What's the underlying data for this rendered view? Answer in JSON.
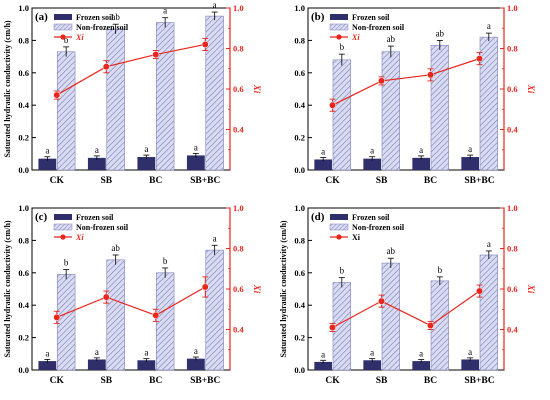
{
  "chart_data": [
    {
      "type": "bar",
      "panel_label": "(a)",
      "categories": [
        "CK",
        "SB",
        "BC",
        "SB+BC"
      ],
      "ylabel": "Saturated hydraulic conductivity (cm/h)",
      "y2label": "Xi",
      "ylim": [
        0.0,
        1.0
      ],
      "y2lim": [
        0.2,
        1.0
      ],
      "y_ticks": [
        "0.0",
        "0.2",
        "0.4",
        "0.6",
        "0.8",
        "1.0"
      ],
      "y2_ticks": [
        "0.4",
        "0.6",
        "0.8",
        "1.0"
      ],
      "legend": {
        "placement": "top-left",
        "entries": [
          "Frozen soil",
          "Non-frozen soil",
          "Xi"
        ],
        "xi_italic": true
      },
      "series": [
        {
          "name": "Frozen soil",
          "values": [
            0.07,
            0.075,
            0.08,
            0.09
          ],
          "errors": [
            0.012,
            0.012,
            0.012,
            0.012
          ],
          "letters": [
            "a",
            "a",
            "a",
            "a"
          ]
        },
        {
          "name": "Non-frozen soil",
          "values": [
            0.73,
            0.87,
            0.91,
            0.95
          ],
          "errors": [
            0.03,
            0.03,
            0.03,
            0.025
          ],
          "letters": [
            "b",
            "ab",
            "a",
            "a"
          ]
        },
        {
          "name": "Xi",
          "values": [
            0.57,
            0.71,
            0.77,
            0.82
          ],
          "errors": [
            0.02,
            0.03,
            0.02,
            0.03
          ]
        }
      ]
    },
    {
      "type": "bar",
      "panel_label": "(b)",
      "categories": [
        "CK",
        "SB",
        "BC",
        "SB+BC"
      ],
      "ylabel": "",
      "y2label": "Xi",
      "ylim": [
        0.0,
        1.0
      ],
      "y2lim": [
        0.2,
        1.0
      ],
      "y_ticks": [
        "0.0",
        "0.2",
        "0.4",
        "0.6",
        "0.8",
        "1.0"
      ],
      "y2_ticks": [
        "0.4",
        "0.6",
        "0.8",
        "1.0"
      ],
      "legend": {
        "placement": "top-left",
        "entries": [
          "Frozen soil",
          "Non-frozen soil",
          "Xi"
        ],
        "xi_italic": true
      },
      "series": [
        {
          "name": "Frozen soil",
          "values": [
            0.065,
            0.07,
            0.075,
            0.08
          ],
          "errors": [
            0.012,
            0.012,
            0.012,
            0.012
          ],
          "letters": [
            "a",
            "a",
            "a",
            "a"
          ]
        },
        {
          "name": "Non-frozen soil",
          "values": [
            0.68,
            0.73,
            0.77,
            0.82
          ],
          "errors": [
            0.035,
            0.035,
            0.03,
            0.025
          ],
          "letters": [
            "b",
            "ab",
            "ab",
            "a"
          ]
        },
        {
          "name": "Xi",
          "values": [
            0.52,
            0.64,
            0.67,
            0.75
          ],
          "errors": [
            0.03,
            0.02,
            0.03,
            0.03
          ]
        }
      ]
    },
    {
      "type": "bar",
      "panel_label": "(c)",
      "categories": [
        "CK",
        "SB",
        "BC",
        "SB+BC"
      ],
      "ylabel": "Saturated hydraulic conductivity (cm/h)",
      "y2label": "Xi",
      "ylim": [
        0.0,
        1.0
      ],
      "y2lim": [
        0.2,
        1.0
      ],
      "y_ticks": [
        "0.0",
        "0.2",
        "0.4",
        "0.6",
        "0.8",
        "1.0"
      ],
      "y2_ticks": [
        "0.4",
        "0.6",
        "0.8",
        "1.0"
      ],
      "legend": {
        "placement": "top-left",
        "entries": [
          "Frozen soil",
          "Non-frozen soil",
          "Xi"
        ],
        "xi_italic": true
      },
      "series": [
        {
          "name": "Frozen soil",
          "values": [
            0.055,
            0.065,
            0.06,
            0.07
          ],
          "errors": [
            0.01,
            0.01,
            0.01,
            0.01
          ],
          "letters": [
            "a",
            "a",
            "a",
            "a"
          ]
        },
        {
          "name": "Non-frozen soil",
          "values": [
            0.59,
            0.68,
            0.6,
            0.74
          ],
          "errors": [
            0.03,
            0.03,
            0.03,
            0.03
          ],
          "letters": [
            "b",
            "ab",
            "b",
            "a"
          ]
        },
        {
          "name": "Xi",
          "values": [
            0.46,
            0.56,
            0.47,
            0.61
          ],
          "errors": [
            0.03,
            0.03,
            0.03,
            0.05
          ]
        }
      ]
    },
    {
      "type": "bar",
      "panel_label": "(d)",
      "categories": [
        "CK",
        "SB",
        "BC",
        "SB+BC"
      ],
      "ylabel": "Saturated hydraulic conductivity (cm/h)",
      "y2label": "Xi",
      "ylim": [
        0.0,
        1.0
      ],
      "y2lim": [
        0.2,
        1.0
      ],
      "y_ticks": [
        "0.0",
        "0.2",
        "0.4",
        "0.6",
        "0.8",
        "1.0"
      ],
      "y2_ticks": [
        "0.4",
        "0.6",
        "0.8",
        "1.0"
      ],
      "legend": {
        "placement": "top-left",
        "entries": [
          "Frozen soil",
          "Non-frozen soil",
          "Xi"
        ],
        "xi_italic": false
      },
      "series": [
        {
          "name": "Frozen soil",
          "values": [
            0.05,
            0.06,
            0.055,
            0.065
          ],
          "errors": [
            0.01,
            0.01,
            0.01,
            0.01
          ],
          "letters": [
            "a",
            "a",
            "a",
            "a"
          ]
        },
        {
          "name": "Non-frozen soil",
          "values": [
            0.54,
            0.66,
            0.55,
            0.71
          ],
          "errors": [
            0.03,
            0.03,
            0.025,
            0.025
          ],
          "letters": [
            "b",
            "ab",
            "b",
            "a"
          ]
        },
        {
          "name": "Xi",
          "values": [
            0.41,
            0.54,
            0.42,
            0.59
          ],
          "errors": [
            0.02,
            0.03,
            0.02,
            0.03
          ]
        }
      ]
    }
  ],
  "colors": {
    "frozen_bar": "#2f2f6b",
    "nonfrozen_fill": "#d9dcf2",
    "nonfrozen_hatch": "#7f83b8",
    "xi_line": "#e8261c",
    "axis": "#000000"
  }
}
